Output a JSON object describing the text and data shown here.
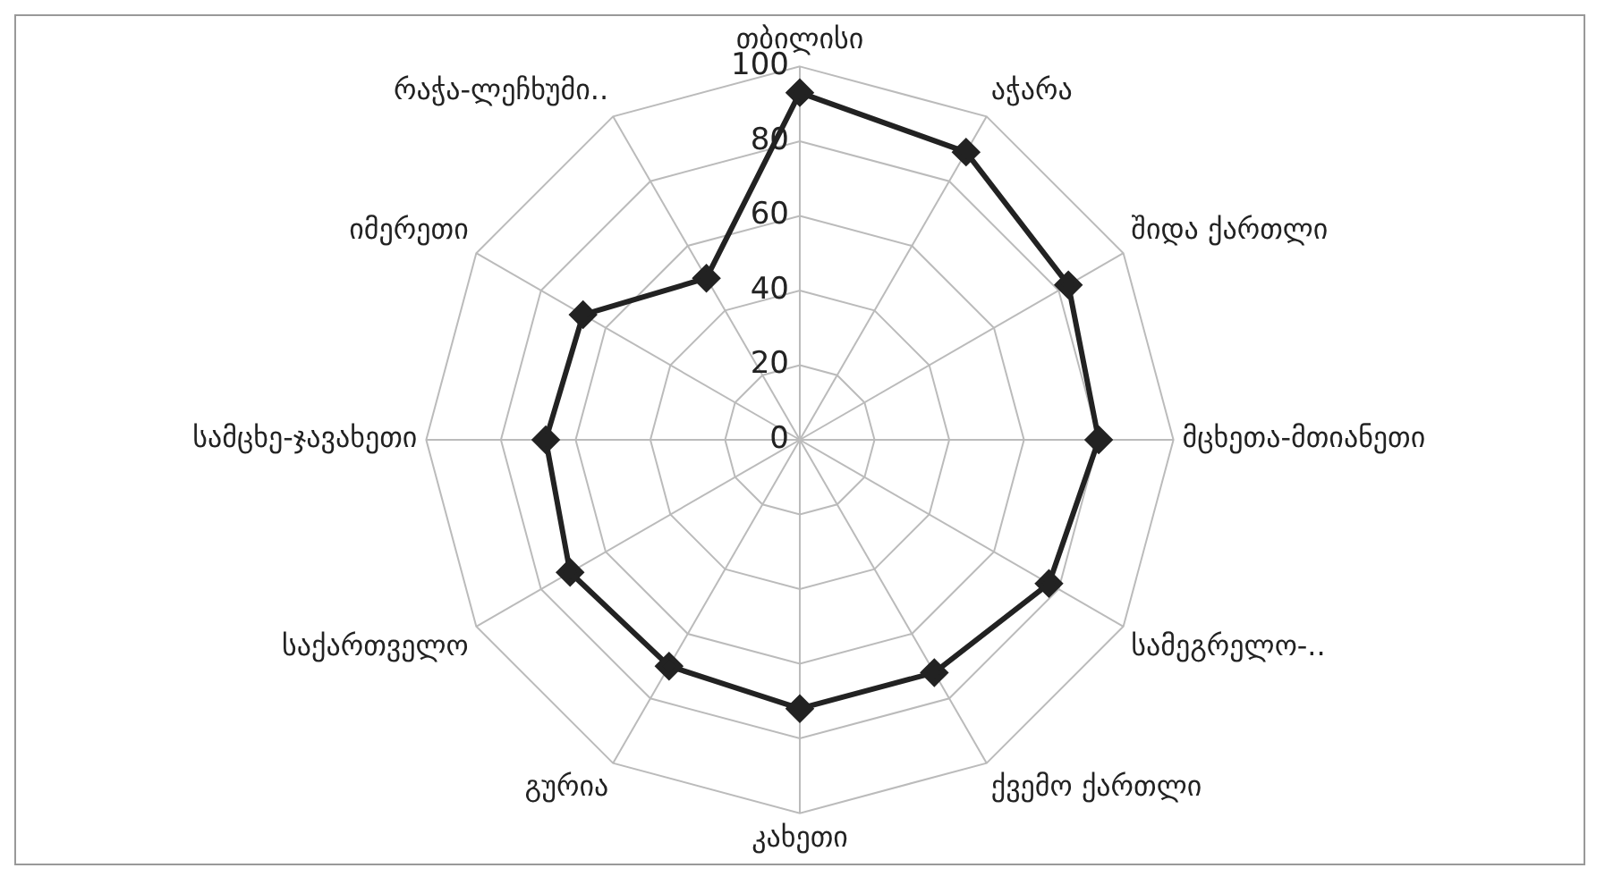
{
  "chart_data": {
    "type": "radar",
    "categories": [
      "თბილისი",
      "აჭარა",
      "შიდა ქართლი",
      "მცხეთა-მთიანეთი",
      "სამეგრელო-..",
      "ქვემო ქართლი",
      "კახეთი",
      "გურია",
      "საქართველო",
      "სამცხე-ჯავახეთი",
      "იმერეთი",
      "რაჭა-ლეჩხუმი.."
    ],
    "series": [
      {
        "color": "#222222",
        "values": [
          93,
          89,
          83,
          80,
          77,
          72,
          72,
          70,
          71,
          68,
          67,
          50
        ]
      }
    ],
    "ylim": [
      0,
      100
    ],
    "yticks": [
      0,
      20,
      40,
      60,
      80,
      100
    ],
    "grid": true,
    "legend": false,
    "marker": "diamond",
    "line_style": "solid"
  }
}
